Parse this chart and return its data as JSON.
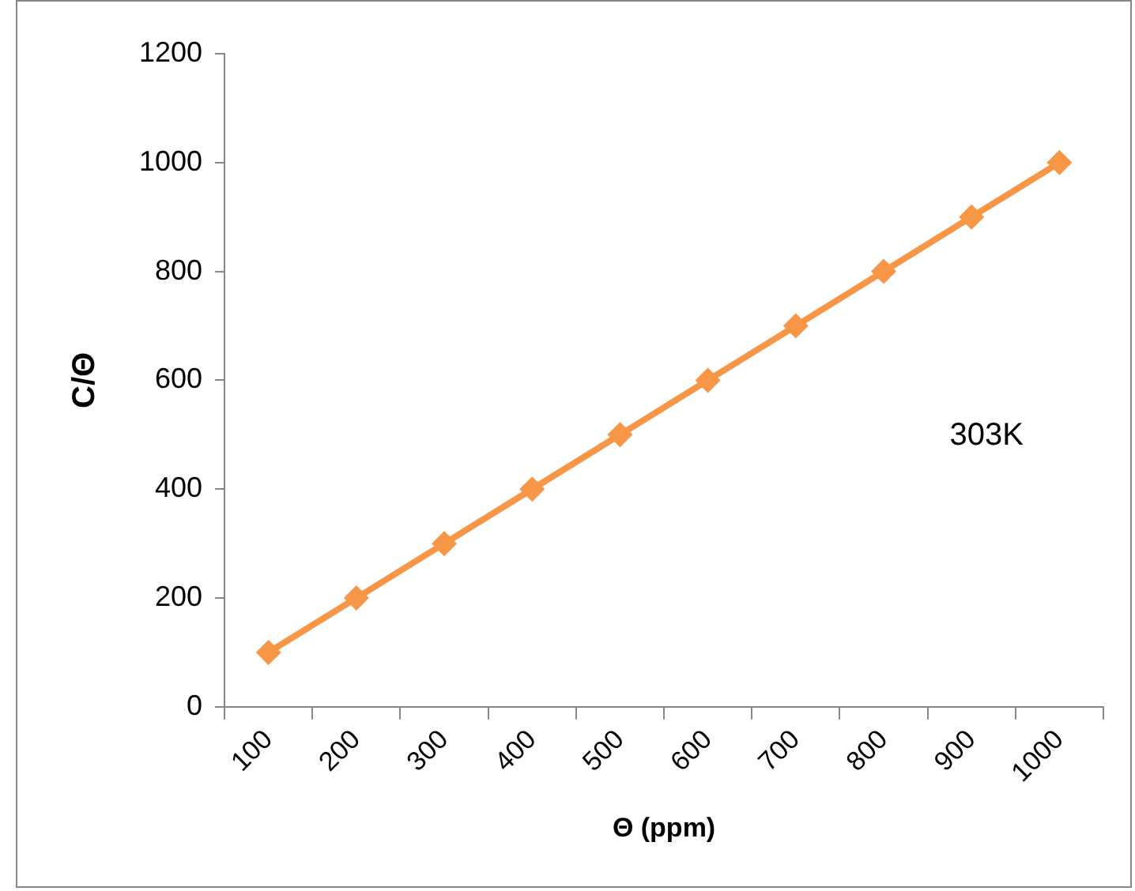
{
  "chart_data": {
    "type": "line",
    "xlabel": "Θ (ppm)",
    "ylabel": "C/Θ",
    "categories": [
      "100",
      "200",
      "300",
      "400",
      "500",
      "600",
      "700",
      "800",
      "900",
      "1000"
    ],
    "series": [
      {
        "color": "#f79646",
        "values": [
          100,
          200,
          300,
          400,
          500,
          600,
          700,
          800,
          900,
          1000
        ]
      }
    ],
    "ylim": [
      0,
      1200
    ],
    "yticks": [
      0,
      200,
      400,
      600,
      800,
      1000,
      1200
    ],
    "grid": false,
    "legend": false,
    "marker": "diamond",
    "line_style": "solid",
    "annotations": [
      "303K"
    ]
  }
}
